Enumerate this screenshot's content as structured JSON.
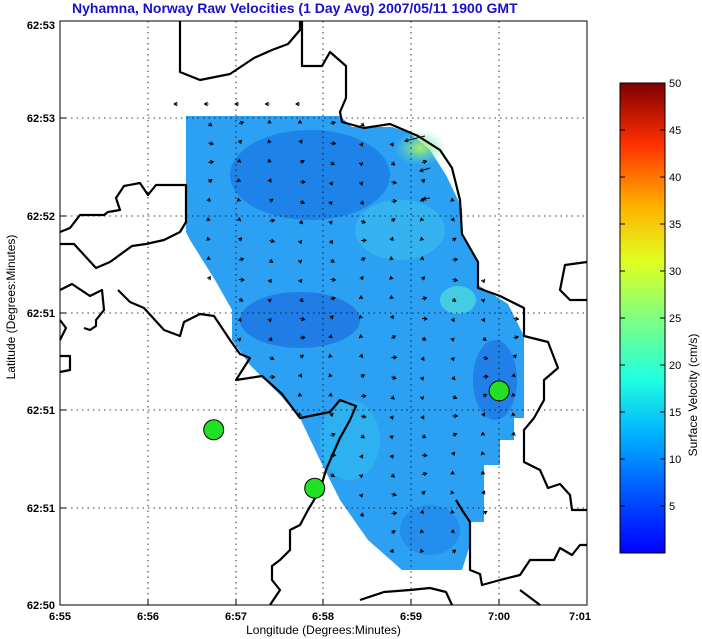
{
  "chart_data": {
    "type": "heatmap",
    "title": "Nyhamna, Norway Raw Velocities (1 Day Avg) 2007/05/11 1900 GMT",
    "xlabel": "Longitude (Degrees:Minutes)",
    "ylabel": "Latitude (Degrees:Minutes)",
    "colorbar_label": "Surface Velocity (cm/s)",
    "x_ticks": [
      "6:55",
      "6:56",
      "6:57",
      "6:58",
      "6:59",
      "7:00",
      "7:01"
    ],
    "y_ticks": [
      "62:50",
      "62:51",
      "62:51",
      "62:51",
      "62:52",
      "62:53",
      "62:53"
    ],
    "colorbar_ticks": [
      5,
      10,
      15,
      20,
      25,
      30,
      35,
      40,
      45,
      50
    ],
    "colorbar_range": [
      0,
      50
    ],
    "colormap": "jet",
    "grid": true,
    "stations": [
      {
        "lon_min": 56.75,
        "lat_min": 50.9
      },
      {
        "lon_min": 57.9,
        "lat_min": 50.6
      },
      {
        "lon_min": 60.0,
        "lat_min": 51.1
      }
    ],
    "station_color": "#22e022"
  }
}
